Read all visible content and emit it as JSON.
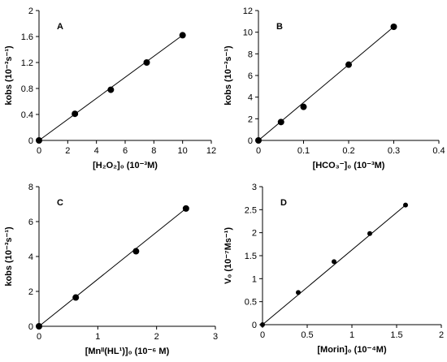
{
  "chart_data": [
    {
      "type": "scatter",
      "panel_label": "A",
      "xlabel": "[H₂O₂]₀ (10⁻³M)",
      "ylabel": "kobs (10⁻³s⁻¹)",
      "xlim": [
        0,
        12
      ],
      "ylim": [
        0,
        2
      ],
      "xticks": [
        "0",
        "2",
        "4",
        "6",
        "8",
        "10",
        "12"
      ],
      "yticks": [
        "0",
        "0.4",
        "0.8",
        "1.2",
        "1.6",
        "2"
      ],
      "points": {
        "x": [
          0,
          2.5,
          5,
          7.5,
          10
        ],
        "y": [
          0,
          0.41,
          0.78,
          1.2,
          1.62
        ]
      },
      "fit_line": {
        "x": [
          0,
          10
        ],
        "y": [
          0,
          1.62
        ]
      },
      "grid": false
    },
    {
      "type": "scatter",
      "panel_label": "B",
      "xlabel": "[HCO₃⁻]₀ (10⁻³M)",
      "ylabel": "kobs (10⁻³s⁻¹)",
      "xlim": [
        0,
        0.4
      ],
      "ylim": [
        0,
        12
      ],
      "xticks": [
        "0",
        "0.1",
        "0.2",
        "0.3",
        "0.4"
      ],
      "yticks": [
        "0",
        "2",
        "4",
        "6",
        "8",
        "10",
        "12"
      ],
      "points": {
        "x": [
          0,
          0.05,
          0.1,
          0.2,
          0.3
        ],
        "y": [
          0,
          1.7,
          3.1,
          7.0,
          10.5
        ]
      },
      "fit_line": {
        "x": [
          0,
          0.3
        ],
        "y": [
          0,
          10.5
        ]
      },
      "grid": false
    },
    {
      "type": "scatter",
      "panel_label": "C",
      "xlabel": "[Mnᴵᴵ(HL¹)]₀ (10⁻⁶ M)",
      "ylabel": "kobs (10⁻³s⁻¹)",
      "xlim": [
        0,
        3
      ],
      "ylim": [
        0,
        8
      ],
      "xticks": [
        "0",
        "1",
        "2",
        "3"
      ],
      "yticks": [
        "0",
        "2",
        "4",
        "6",
        "8"
      ],
      "points": {
        "x": [
          0,
          0.625,
          1.65,
          2.5
        ],
        "y": [
          0,
          1.65,
          4.3,
          6.75
        ]
      },
      "fit_line": {
        "x": [
          0,
          2.5
        ],
        "y": [
          0,
          6.75
        ]
      },
      "grid": false
    },
    {
      "type": "scatter",
      "panel_label": "D",
      "xlabel": "[Morin]₀ (10⁻⁴M)",
      "ylabel": "V₀ (10⁻⁷Ms⁻¹)",
      "xlim": [
        0,
        2
      ],
      "ylim": [
        0,
        3
      ],
      "xticks": [
        "0",
        "0.5",
        "1",
        "1.5",
        "2"
      ],
      "yticks": [
        "0",
        "0.5",
        "1",
        "1.5",
        "2",
        "2.5",
        "3"
      ],
      "points": {
        "x": [
          0,
          0.4,
          0.8,
          1.2,
          1.6
        ],
        "y": [
          0,
          0.7,
          1.37,
          1.98,
          2.6
        ]
      },
      "fit_line": {
        "x": [
          0,
          1.6
        ],
        "y": [
          0,
          2.6
        ]
      },
      "grid": false
    }
  ]
}
